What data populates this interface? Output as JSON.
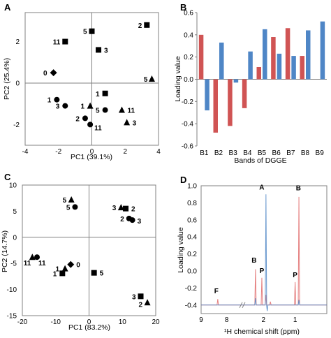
{
  "chart_data": [
    {
      "panel": "A",
      "type": "scatter",
      "xlabel": "PC1 (39.1%)",
      "ylabel": "PC2 (25.4%)",
      "xlim": [
        -4,
        4
      ],
      "ylim": [
        -3,
        3.4
      ],
      "xticks": [
        -4,
        -2,
        0,
        2,
        4
      ],
      "yticks": [
        -2,
        0,
        2
      ],
      "points": [
        {
          "x": -2.3,
          "y": 0.5,
          "marker": "diamond",
          "label": "0"
        },
        {
          "x": -1.6,
          "y": 2.0,
          "marker": "square",
          "label": "11"
        },
        {
          "x": 0.0,
          "y": 2.5,
          "marker": "square",
          "label": "5"
        },
        {
          "x": 0.4,
          "y": 1.6,
          "marker": "square",
          "label": "3"
        },
        {
          "x": 3.3,
          "y": 2.8,
          "marker": "square",
          "label": "2"
        },
        {
          "x": 3.6,
          "y": 0.2,
          "marker": "triangle",
          "label": "5"
        },
        {
          "x": 0.8,
          "y": -0.5,
          "marker": "square",
          "label": "1"
        },
        {
          "x": -2.1,
          "y": -0.8,
          "marker": "circle",
          "label": "1"
        },
        {
          "x": -1.6,
          "y": -1.1,
          "marker": "circle",
          "label": "3"
        },
        {
          "x": -0.1,
          "y": -1.1,
          "marker": "triangle",
          "label": "1"
        },
        {
          "x": 0.8,
          "y": -1.3,
          "marker": "circle",
          "label": "5"
        },
        {
          "x": 1.8,
          "y": -1.3,
          "marker": "triangle",
          "label": "11"
        },
        {
          "x": -0.4,
          "y": -1.7,
          "marker": "circle",
          "label": "2"
        },
        {
          "x": -0.1,
          "y": -2.0,
          "marker": "circle",
          "label": "11"
        },
        {
          "x": 2.1,
          "y": -1.9,
          "marker": "triangle",
          "label": "3"
        }
      ]
    },
    {
      "panel": "B",
      "type": "bar",
      "xlabel": "Bands of DGGE",
      "ylabel": "Loading value",
      "ylim": [
        -0.6,
        0.6
      ],
      "yticks": [
        -0.6,
        -0.4,
        -0.2,
        0.0,
        0.2,
        0.4,
        0.6
      ],
      "ytick_labels": [
        "-0.6",
        "-0.4",
        "-0.2",
        "0.0",
        "0.2",
        "0.4",
        "0.6"
      ],
      "categories": [
        "B1",
        "B2",
        "B3",
        "B4",
        "B5",
        "B6",
        "B7",
        "B8",
        "B9"
      ],
      "series": [
        {
          "color": "#d05454",
          "values": [
            0.4,
            -0.48,
            -0.42,
            -0.26,
            0.11,
            0.38,
            0.46,
            0.21,
            0.0
          ]
        },
        {
          "color": "#4f86c6",
          "values": [
            -0.28,
            0.33,
            -0.03,
            0.25,
            0.45,
            0.23,
            0.21,
            0.44,
            0.52
          ]
        }
      ]
    },
    {
      "panel": "C",
      "type": "scatter",
      "xlabel": "PC1 (83.2%)",
      "ylabel": "PC2 (14.7%)",
      "xlim": [
        -20,
        20
      ],
      "ylim": [
        -15,
        10
      ],
      "xticks": [
        -20,
        -10,
        0,
        10,
        20
      ],
      "yticks": [
        -15,
        -10,
        -5,
        0,
        5,
        10
      ],
      "points": [
        {
          "x": -5.3,
          "y": 7.2,
          "marker": "triangle",
          "label": "5"
        },
        {
          "x": -4.2,
          "y": 5.8,
          "marker": "circle",
          "label": "5"
        },
        {
          "x": 9.6,
          "y": 5.7,
          "marker": "triangle",
          "label": "3"
        },
        {
          "x": 11.0,
          "y": 5.5,
          "marker": "square",
          "label": "2"
        },
        {
          "x": 12.0,
          "y": 3.6,
          "marker": "circle",
          "label": "2"
        },
        {
          "x": 13.0,
          "y": 3.3,
          "marker": "circle",
          "label": "3"
        },
        {
          "x": -17.0,
          "y": -3.8,
          "marker": "triangle",
          "label": "11"
        },
        {
          "x": -15.6,
          "y": -3.8,
          "marker": "circle",
          "label": "11"
        },
        {
          "x": -7.2,
          "y": -6.0,
          "marker": "triangle",
          "label": "1"
        },
        {
          "x": -8.0,
          "y": -6.9,
          "marker": "square",
          "label": "1"
        },
        {
          "x": -5.5,
          "y": -5.2,
          "marker": "diamond",
          "label": "0"
        },
        {
          "x": 1.5,
          "y": -6.8,
          "marker": "square",
          "label": "5"
        },
        {
          "x": 15.5,
          "y": -11.3,
          "marker": "square",
          "label": "3"
        },
        {
          "x": 17.5,
          "y": -12.5,
          "marker": "triangle",
          "label": "2"
        }
      ]
    },
    {
      "panel": "D",
      "type": "line",
      "xlabel": "¹H chemical shift (ppm)",
      "ylabel": "Loading value",
      "xlim": [
        9,
        0
      ],
      "ylim": [
        -0.5,
        1.0
      ],
      "xticks": [
        9,
        8,
        2,
        1
      ],
      "yticks": [
        -0.4,
        -0.2,
        0.0,
        0.2,
        0.4,
        0.6,
        0.8,
        1.0
      ],
      "ytick_labels": [
        "-0.4",
        "-0.2",
        "0.0",
        "0.2",
        "0.4",
        "0.6",
        "0.8",
        "1.0"
      ],
      "baseline": -0.4,
      "axis_break": true,
      "annotations": [
        {
          "text": "F",
          "ppm": 8.35
        },
        {
          "text": "B",
          "ppm": 2.25
        },
        {
          "text": "P",
          "ppm": 2.05
        },
        {
          "text": "A",
          "ppm": 1.92
        },
        {
          "text": "P",
          "ppm": 1.0
        },
        {
          "text": "B",
          "ppm": 0.85
        }
      ],
      "series": [
        {
          "color": "#e06a6a",
          "peaks": [
            [
              8.35,
              -0.33
            ],
            [
              2.25,
              0.02
            ],
            [
              2.05,
              -0.08
            ],
            [
              1.92,
              -0.28
            ],
            [
              1.78,
              -0.36
            ],
            [
              1.0,
              -0.13
            ],
            [
              0.88,
              0.87
            ]
          ]
        },
        {
          "color": "#4f86c6",
          "peaks": [
            [
              1.92,
              0.9
            ],
            [
              1.88,
              -0.47
            ],
            [
              2.25,
              -0.32
            ],
            [
              0.88,
              -0.34
            ]
          ]
        }
      ]
    }
  ]
}
